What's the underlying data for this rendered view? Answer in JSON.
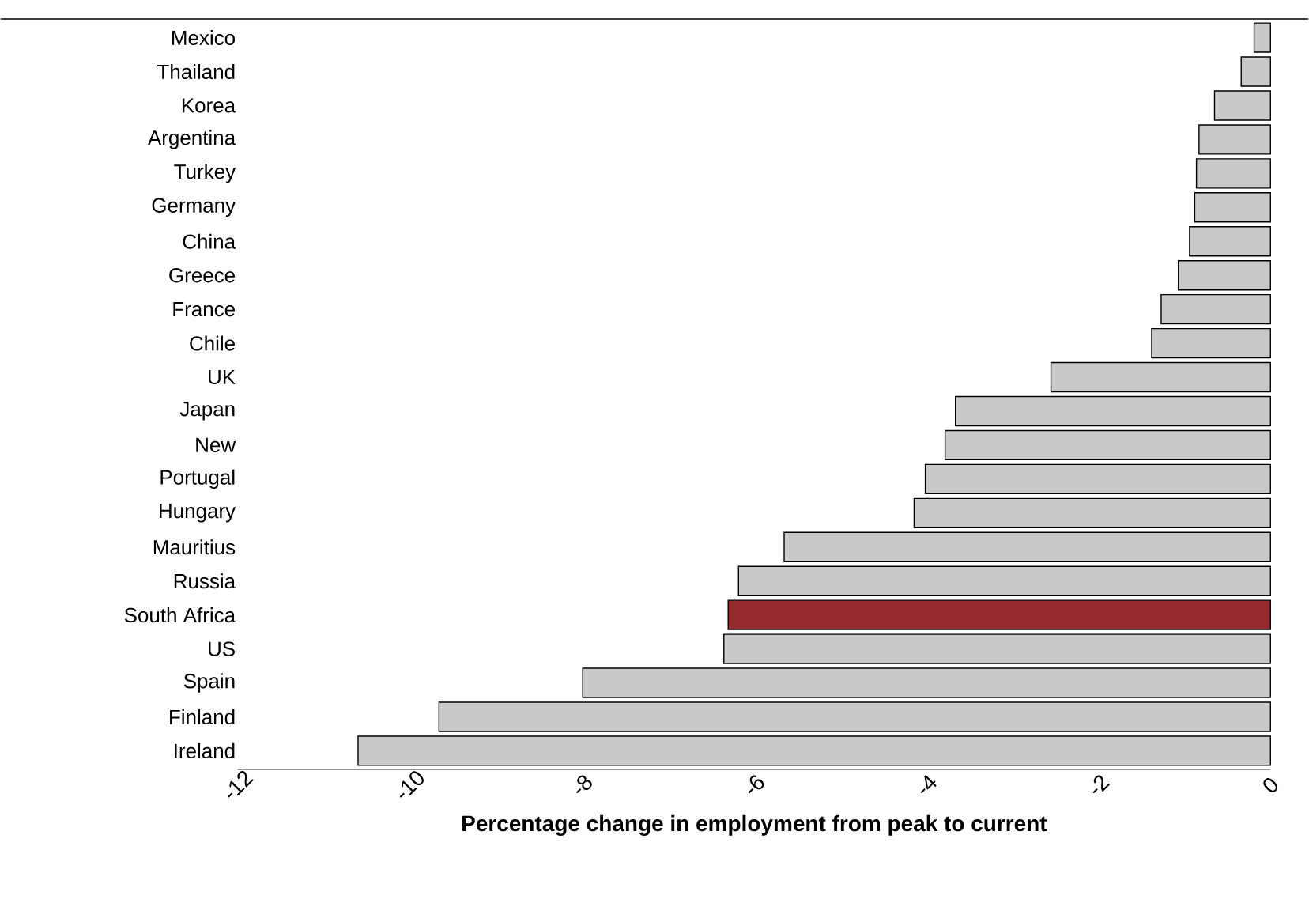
{
  "chart_data": {
    "type": "bar",
    "orientation": "horizontal",
    "xlabel": "Percentage change in employment from peak to current",
    "categories": [
      "Mexico",
      "Thailand",
      "Korea",
      "Argentina",
      "Turkey",
      "Germany",
      "China",
      "Greece",
      "France",
      "Chile",
      "UK",
      "Japan",
      "New",
      "Portugal",
      "Hungary",
      "Mauritius",
      "Russia",
      "South Africa",
      "US",
      "Spain",
      "Finland",
      "Ireland"
    ],
    "values": [
      -0.19,
      -0.34,
      -0.65,
      -0.83,
      -0.86,
      -0.88,
      -0.94,
      -1.07,
      -1.27,
      -1.38,
      -2.55,
      -3.66,
      -3.78,
      -4.01,
      -4.14,
      -5.65,
      -6.18,
      -6.3,
      -6.35,
      -7.99,
      -9.66,
      -10.6
    ],
    "colors": [
      "#c8c9cb",
      "#c8c9cb",
      "#c8c9cb",
      "#c8c9cb",
      "#c8c9cb",
      "#c8c9cb",
      "#c8c9cb",
      "#c8c9cb",
      "#c8c9cb",
      "#c8c9cb",
      "#c8c9cb",
      "#c8c9cb",
      "#c8c9cb",
      "#c8c9cb",
      "#c8c9cb",
      "#c8c9cb",
      "#c8c9cb",
      "#952a2e",
      "#c8c9cb",
      "#c8c9cb",
      "#c8c9cb",
      "#c8c9cb"
    ],
    "xlim": [
      -12,
      0
    ],
    "xticks": [
      -12,
      -10,
      -8,
      -6,
      -4,
      -2,
      0
    ]
  }
}
